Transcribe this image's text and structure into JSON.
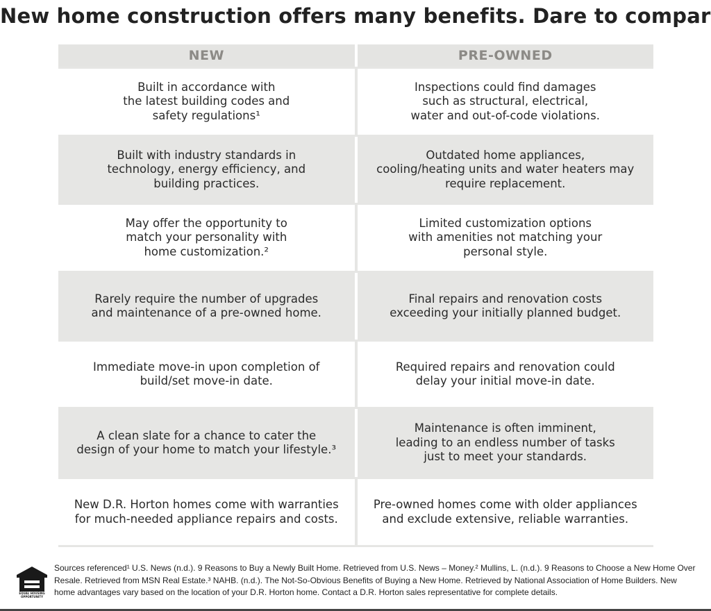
{
  "title": "New home construction offers many benefits. Dare to compare…",
  "table": {
    "headers": {
      "new": "NEW",
      "preowned": "PRE-OWNED"
    },
    "rows": [
      {
        "new": "Built in accordance with\nthe latest building codes and\nsafety regulations¹",
        "preowned": "Inspections could find damages\nsuch as structural, electrical,\nwater and out-of-code violations."
      },
      {
        "new": "Built with industry standards in\ntechnology, energy efficiency, and\nbuilding practices.",
        "preowned": "Outdated home appliances,\ncooling/heating units and water heaters may\nrequire replacement."
      },
      {
        "new": "May offer the opportunity to\nmatch your personality with\nhome customization.²",
        "preowned": "Limited customization options\nwith amenities not matching your\npersonal style."
      },
      {
        "new": "Rarely require the number of upgrades\nand maintenance of a pre-owned home.",
        "preowned": "Final repairs and renovation costs\nexceeding your initially planned budget."
      },
      {
        "new": "Immediate move-in upon completion of\nbuild/set move-in date.",
        "preowned": "Required repairs and renovation could\ndelay your initial move-in date."
      },
      {
        "new": "A clean slate for a chance to cater the\ndesign of your home to match your lifestyle.³",
        "preowned": "Maintenance is often imminent,\nleading to an endless number of tasks\njust to meet your standards."
      },
      {
        "new": "New D.R. Horton homes come with warranties\nfor much-needed appliance repairs and costs.",
        "preowned": "Pre-owned homes come with older appliances\nand exclude extensive, reliable warranties."
      }
    ]
  },
  "footer": {
    "logo_caption": "EQUAL HOUSING OPPORTUNITY",
    "footnote": "Sources referenced¹ U.S. News (n.d.). 9 Reasons to Buy a Newly Built Home. Retrieved from U.S. News – Money.² Mullins, L. (n.d.). 9 Reasons to Choose a New Home Over Resale. Retrieved from MSN Real Estate.³ NAHB. (n.d.). The Not-So-Obvious Benefits of Buying a New Home. Retrieved by National Association of Home Builders. New home advantages vary based on the location of your D.R. Horton home. Contact a D.R. Horton sales representative for complete details."
  },
  "colors": {
    "header_text": "#8c8a86",
    "band_gray": "#e6e6e4",
    "text": "#222222"
  }
}
